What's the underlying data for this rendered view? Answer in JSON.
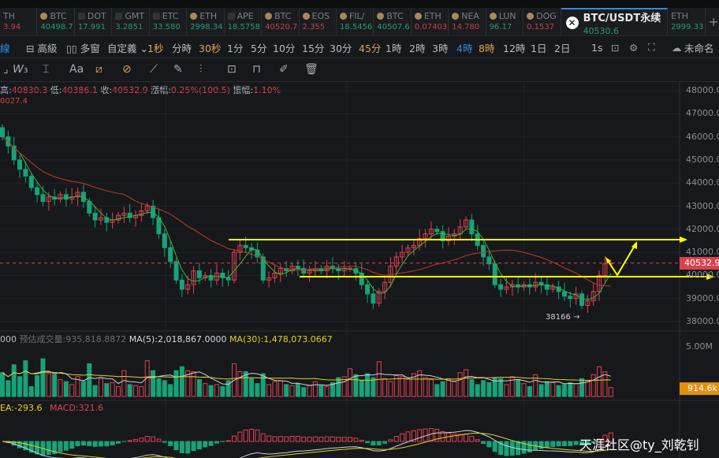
{
  "tickers": [
    {
      "name": "TH",
      "price": "3.94",
      "color": "#c0414a",
      "icon": "none"
    },
    {
      "name": "BTC",
      "price": "40498.7",
      "color": "#1e9e75",
      "icon": "coin-icon"
    },
    {
      "name": "DOT",
      "price": "17.991",
      "color": "#1e9e75",
      "icon": "okx-icon"
    },
    {
      "name": "GMT",
      "price": "3.2851",
      "color": "#1e9e75",
      "icon": "okx-icon"
    },
    {
      "name": "ETC",
      "price": "33.580",
      "color": "#1e9e75",
      "icon": "okx-icon"
    },
    {
      "name": "ETH",
      "price": "2998.34",
      "color": "#1e9e75",
      "icon": "coin-icon"
    },
    {
      "name": "APE",
      "price": "18.5758",
      "color": "#1e9e75",
      "icon": "okx-icon"
    },
    {
      "name": "BTC",
      "price": "40520.7",
      "color": "#c0414a",
      "icon": "coin-icon"
    },
    {
      "name": "EOS",
      "price": "2.355",
      "color": "#c0414a",
      "icon": "coin-icon"
    },
    {
      "name": "FIL/",
      "price": "18.5456",
      "color": "#1e9e75",
      "icon": "coin-icon"
    },
    {
      "name": "BTC",
      "price": "40507.6",
      "color": "#1e9e75",
      "icon": "coin-icon"
    },
    {
      "name": "ETH",
      "price": "0.07403",
      "color": "#c0414a",
      "icon": "coin-icon"
    },
    {
      "name": "NEA",
      "price": "14.780",
      "color": "#c0414a",
      "icon": "coin-icon"
    },
    {
      "name": "LUN",
      "price": "96.17",
      "color": "#1e9e75",
      "icon": "coin-icon"
    },
    {
      "name": "DOG",
      "price": "0.1537",
      "color": "#c0414a",
      "icon": "coin-icon"
    }
  ],
  "active_ticker": {
    "name": "BTC/USDT永续",
    "price": "40530.6"
  },
  "ticker_after": {
    "name": "ETH",
    "price": "2999.33"
  },
  "add_tab": "+",
  "toolbar": {
    "items": [
      {
        "label": "線",
        "color": "#2a8fe6"
      },
      {
        "label": "⊟ 高級",
        "color": "#b8bcc4"
      },
      {
        "label": "▯▯ 多窗",
        "color": "#b8bcc4"
      },
      {
        "label": "自定義 ⌄",
        "color": "#b8bcc4"
      },
      {
        "label": "1秒",
        "color": "#d9a55a"
      },
      {
        "label": "分時",
        "color": "#b8bcc4"
      },
      {
        "label": "30秒",
        "color": "#d9a55a"
      },
      {
        "label": "1分",
        "color": "#b8bcc4"
      },
      {
        "label": "5分",
        "color": "#b8bcc4"
      },
      {
        "label": "10分",
        "color": "#b8bcc4"
      },
      {
        "label": "15分",
        "color": "#b8bcc4"
      },
      {
        "label": "30分",
        "color": "#b8bcc4"
      },
      {
        "label": "45分",
        "color": "#d9a55a"
      },
      {
        "label": "1時",
        "color": "#b8bcc4"
      },
      {
        "label": "2時",
        "color": "#b8bcc4"
      },
      {
        "label": "3時",
        "color": "#b8bcc4"
      },
      {
        "label": "4時",
        "color": "#2a8fe6"
      },
      {
        "label": "8時",
        "color": "#d9a55a"
      },
      {
        "label": "12時",
        "color": "#b8bcc4"
      },
      {
        "label": "1日",
        "color": "#b8bcc4"
      },
      {
        "label": "2日",
        "color": "#b8bcc4"
      }
    ],
    "one_s": "1s",
    "layout_name": "未命名"
  },
  "info": {
    "high_label": "高:",
    "high": "40830.3",
    "low_label": "低:",
    "low": "40386.1",
    "close_label": "收:",
    "close": "40532.9",
    "chg_label": "漲幅:",
    "chg": "0.25%(100.5)",
    "amp_label": "振幅:",
    "amp": "1.10%"
  },
  "ma_info": "0027.4",
  "price_axis": [
    "48000.0",
    "47000.0",
    "46000.0",
    "45000.0",
    "44000.0",
    "43000.0",
    "42000.0",
    "41000.0",
    "40000.0",
    "39000.0",
    "38000.0"
  ],
  "last_price": "40532.9",
  "low_marker": "38166 →",
  "volume_info": {
    "prefix": "000",
    "est_label": "预估成交量:",
    "est": "935,818.8872",
    "ma5": "MA(5):2,018,867.0000",
    "ma30": "MA(30):1,478,073.0667",
    "axis": "5.00M",
    "last": "914.6k"
  },
  "macd_info": {
    "dea": "EA:-293.6",
    "macd": "MACD:321.6"
  },
  "watermark": "天涯社区@ty_刘乾钊",
  "colors": {
    "up": "#e0424f",
    "down": "#16a37a",
    "ma_short": "#2dbb3a",
    "ma_long": "#c0392b",
    "annotation": "#ffff00"
  },
  "chart_data": {
    "type": "candlestick",
    "timeframe": "4時",
    "ylim": [
      38000,
      48000
    ],
    "closes": [
      46000,
      45600,
      45000,
      44600,
      44300,
      43800,
      43500,
      43200,
      43400,
      43300,
      43500,
      43300,
      43400,
      43600,
      43200,
      42700,
      42400,
      42500,
      42300,
      42400,
      42600,
      42700,
      42500,
      42600,
      42800,
      43000,
      42500,
      41800,
      41200,
      40600,
      39800,
      39400,
      39600,
      40200,
      39900,
      40000,
      39800,
      40100,
      39900,
      39800,
      41000,
      41300,
      41200,
      41100,
      40800,
      39800,
      39900,
      40100,
      40300,
      40200,
      40400,
      40300,
      40100,
      40200,
      40300,
      40200,
      40400,
      40300,
      40200,
      40300,
      40300,
      40100,
      39600,
      39200,
      38800,
      39300,
      39700,
      40400,
      40800,
      41000,
      41200,
      41300,
      41600,
      41800,
      42000,
      41900,
      41500,
      41700,
      41800,
      42100,
      42400,
      41800,
      41300,
      40800,
      40500,
      39600,
      39400,
      39500,
      39600,
      39500,
      39600,
      39500,
      39700,
      39600,
      39400,
      39500,
      39300,
      39100,
      39000,
      39200,
      38700,
      38900,
      39300,
      40000,
      40500,
      40533
    ],
    "volumes_m": [
      2.4,
      1.6,
      3.2,
      2.0,
      3.6,
      1.0,
      2.1,
      3.8,
      2.3,
      2.2,
      1.7,
      1.5,
      1.2,
      2.0,
      1.5,
      3.3,
      1.1,
      1.8,
      1.3,
      1.4,
      1.0,
      2.6,
      1.2,
      1.1,
      1.0,
      3.6,
      2.6,
      1.8,
      1.6,
      1.2,
      2.6,
      3.0,
      2.6,
      2.5,
      1.7,
      1.3,
      1.1,
      1.2,
      1.0,
      1.6,
      3.3,
      2.5,
      2.5,
      1.8,
      1.3,
      2.3,
      1.2,
      1.5,
      1.6,
      1.2,
      1.1,
      1.3,
      0.9,
      1.1,
      1.5,
      1.1,
      1.0,
      1.4,
      1.9,
      2.0,
      2.8,
      2.2,
      1.6,
      2.3,
      1.9,
      3.5,
      1.8,
      1.5,
      2.1,
      2.0,
      1.9,
      2.3,
      2.6,
      1.9,
      1.7,
      1.2,
      1.5,
      1.8,
      1.5,
      2.4,
      2.7,
      1.7,
      1.2,
      1.6,
      1.4,
      1.9,
      1.8,
      1.2,
      2.0,
      1.7,
      1.3,
      1.0,
      2.2,
      1.2,
      1.5,
      1.4,
      1.1,
      1.2,
      1.4,
      1.3,
      1.8,
      1.6,
      2.2,
      3.0,
      2.5,
      0.9
    ]
  }
}
